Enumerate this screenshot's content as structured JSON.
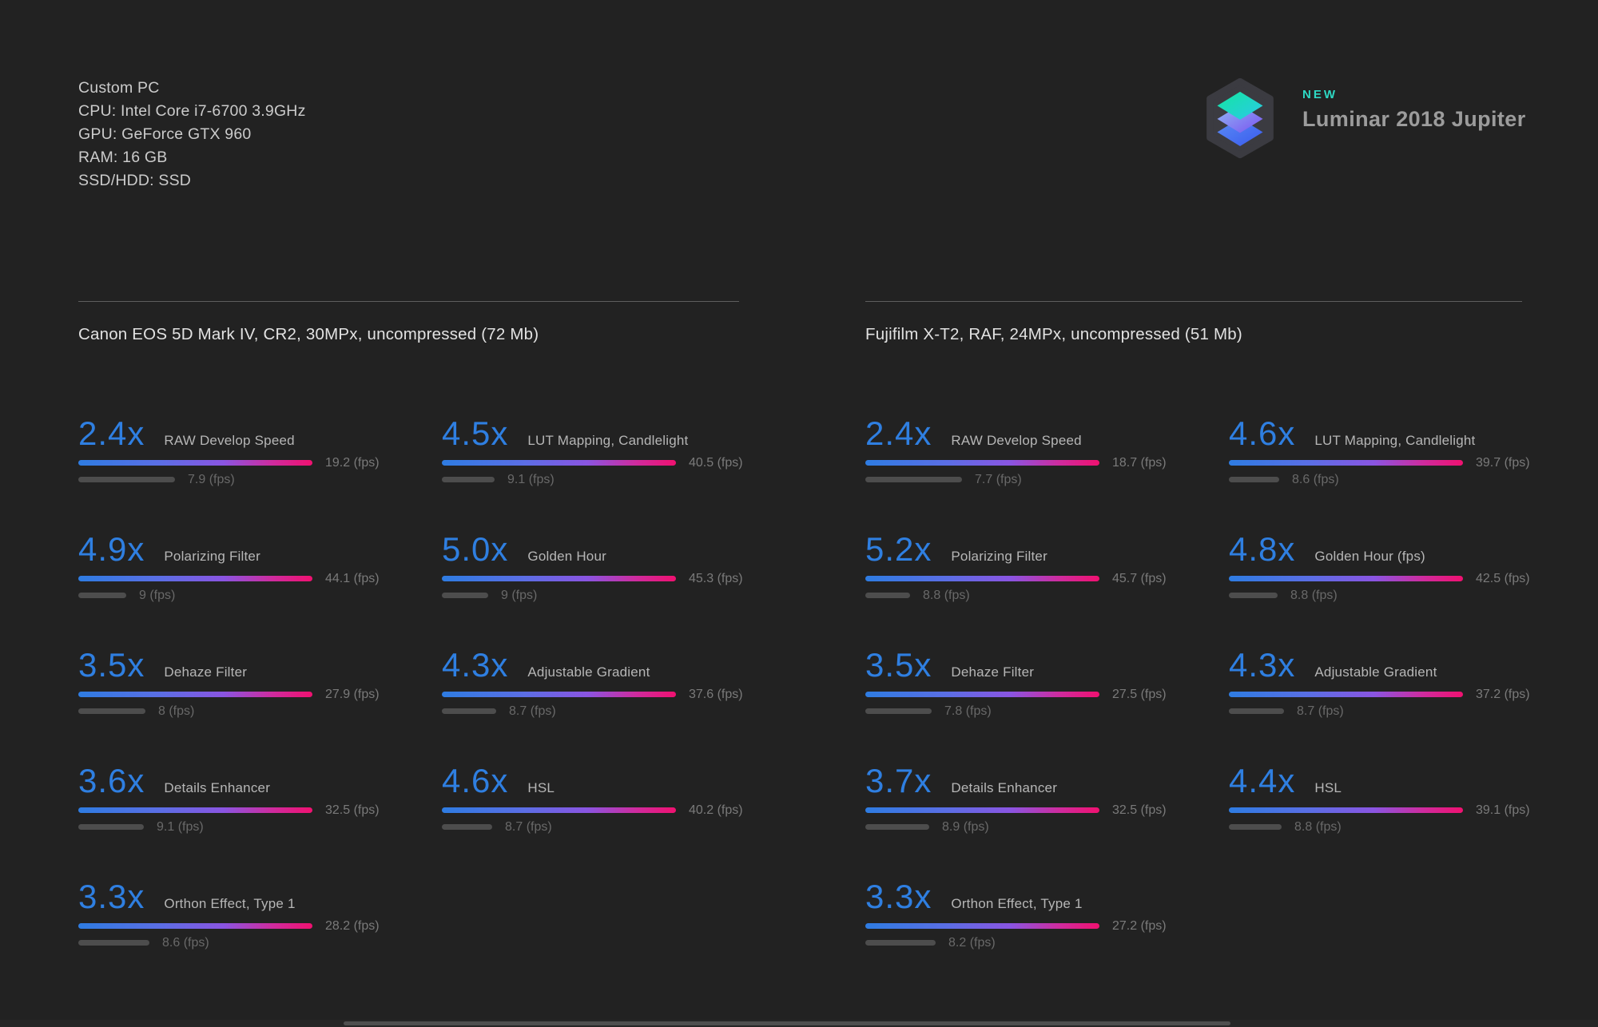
{
  "page": {
    "background": "#222222"
  },
  "specs": {
    "lines": [
      "Custom PC",
      "CPU: Intel Core i7-6700 3.9GHz",
      "GPU: GeForce GTX 960",
      "RAM: 16 GB",
      "SSD/HDD: SSD"
    ]
  },
  "brand": {
    "badge": "NEW",
    "name": "Luminar 2018 Jupiter",
    "logo": "luminar-layers-hexagon"
  },
  "colors": {
    "page_bg": "#222222",
    "accent_blue": "#2f7fe1",
    "bar_gradient_start": "#2e7ce2",
    "bar_gradient_mid": "#8a55e2",
    "bar_gradient_end": "#f01170",
    "baseline_bar": "#4d4d4d",
    "badge_teal": "#2ed9c4",
    "text_primary": "#cbcbcb",
    "text_secondary": "#7a7a7a"
  },
  "chart_data": {
    "type": "bar",
    "orientation": "horizontal",
    "unit": "fps",
    "legend_position": "none",
    "series_meaning": [
      "result_fps (gradient bar)",
      "baseline_fps (gray bar)"
    ],
    "sections": [
      {
        "title": "Canon EOS 5D Mark IV, CR2, 30MPx, uncompressed (72 Mb)",
        "columns": [
          [
            {
              "speedup": "2.4x",
              "label": "RAW Develop Speed",
              "result_fps": 19.2,
              "result_text": "19.2 (fps)",
              "baseline_fps": 7.9,
              "baseline_text": "7.9 (fps)"
            },
            {
              "speedup": "4.9x",
              "label": "Polarizing Filter",
              "result_fps": 44.1,
              "result_text": "44.1 (fps)",
              "baseline_fps": 9,
              "baseline_text": "9 (fps)"
            },
            {
              "speedup": "3.5x",
              "label": "Dehaze Filter",
              "result_fps": 27.9,
              "result_text": "27.9 (fps)",
              "baseline_fps": 8,
              "baseline_text": "8 (fps)"
            },
            {
              "speedup": "3.6x",
              "label": "Details Enhancer",
              "result_fps": 32.5,
              "result_text": "32.5 (fps)",
              "baseline_fps": 9.1,
              "baseline_text": "9.1 (fps)"
            },
            {
              "speedup": "3.3x",
              "label": "Orthon Effect, Type 1",
              "result_fps": 28.2,
              "result_text": "28.2 (fps)",
              "baseline_fps": 8.6,
              "baseline_text": "8.6 (fps)"
            }
          ],
          [
            {
              "speedup": "4.5x",
              "label": "LUT Mapping, Candlelight",
              "result_fps": 40.5,
              "result_text": "40.5 (fps)",
              "baseline_fps": 9.1,
              "baseline_text": "9.1 (fps)"
            },
            {
              "speedup": "5.0x",
              "label": "Golden Hour",
              "result_fps": 45.3,
              "result_text": "45.3 (fps)",
              "baseline_fps": 9,
              "baseline_text": "9 (fps)"
            },
            {
              "speedup": "4.3x",
              "label": "Adjustable Gradient",
              "result_fps": 37.6,
              "result_text": "37.6 (fps)",
              "baseline_fps": 8.7,
              "baseline_text": "8.7 (fps)"
            },
            {
              "speedup": "4.6x",
              "label": "HSL",
              "result_fps": 40.2,
              "result_text": "40.2 (fps)",
              "baseline_fps": 8.7,
              "baseline_text": "8.7 (fps)"
            }
          ]
        ]
      },
      {
        "title": "Fujifilm X-T2, RAF, 24MPx, uncompressed (51 Mb)",
        "columns": [
          [
            {
              "speedup": "2.4x",
              "label": "RAW Develop Speed",
              "result_fps": 18.7,
              "result_text": "18.7 (fps)",
              "baseline_fps": 7.7,
              "baseline_text": "7.7 (fps)"
            },
            {
              "speedup": "5.2x",
              "label": "Polarizing Filter",
              "result_fps": 45.7,
              "result_text": "45.7 (fps)",
              "baseline_fps": 8.8,
              "baseline_text": "8.8 (fps)"
            },
            {
              "speedup": "3.5x",
              "label": "Dehaze Filter",
              "result_fps": 27.5,
              "result_text": "27.5 (fps)",
              "baseline_fps": 7.8,
              "baseline_text": "7.8 (fps)"
            },
            {
              "speedup": "3.7x",
              "label": "Details Enhancer",
              "result_fps": 32.5,
              "result_text": "32.5 (fps)",
              "baseline_fps": 8.9,
              "baseline_text": "8.9 (fps)"
            },
            {
              "speedup": "3.3x",
              "label": "Orthon Effect, Type 1",
              "result_fps": 27.2,
              "result_text": "27.2 (fps)",
              "baseline_fps": 8.2,
              "baseline_text": "8.2 (fps)"
            }
          ],
          [
            {
              "speedup": "4.6x",
              "label": "LUT Mapping, Candlelight",
              "result_fps": 39.7,
              "result_text": "39.7 (fps)",
              "baseline_fps": 8.6,
              "baseline_text": "8.6 (fps)"
            },
            {
              "speedup": "4.8x",
              "label": "Golden Hour (fps)",
              "result_fps": 42.5,
              "result_text": "42.5 (fps)",
              "baseline_fps": 8.8,
              "baseline_text": "8.8 (fps)"
            },
            {
              "speedup": "4.3x",
              "label": "Adjustable Gradient",
              "result_fps": 37.2,
              "result_text": "37.2 (fps)",
              "baseline_fps": 8.7,
              "baseline_text": "8.7 (fps)"
            },
            {
              "speedup": "4.4x",
              "label": "HSL",
              "result_fps": 39.1,
              "result_text": "39.1 (fps)",
              "baseline_fps": 8.8,
              "baseline_text": "8.8 (fps)"
            }
          ]
        ]
      }
    ]
  }
}
